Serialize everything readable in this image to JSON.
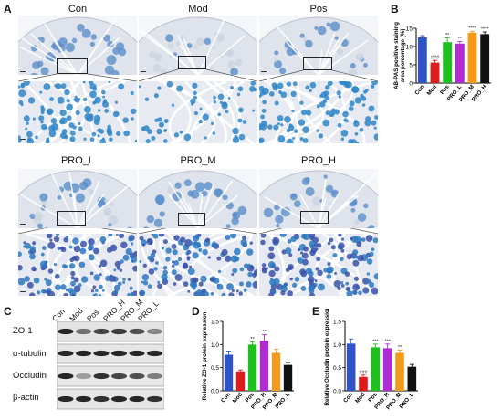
{
  "panels": {
    "A": {
      "label": "A",
      "groups": [
        "Con",
        "Mod",
        "Pos",
        "PRO_L",
        "PRO_M",
        "PRO_H"
      ]
    },
    "B": {
      "label": "B"
    },
    "C": {
      "label": "C",
      "lanes": [
        "Con",
        "Mod",
        "Pos",
        "PRO_H",
        "PRO_M",
        "PRO_L"
      ],
      "rows": [
        "ZO-1",
        "α-tubulin",
        "Occludin",
        "β-actin"
      ]
    },
    "D": {
      "label": "D"
    },
    "E": {
      "label": "E"
    }
  },
  "colors": {
    "Con": "#2f54c8",
    "Mod": "#e01b1b",
    "Pos": "#1fbf1f",
    "PRO_L": "#b02ad6",
    "PRO_M": "#f29a1a",
    "PRO_H": "#111111",
    "tissue_bg": "#e9edf2",
    "stain": "#2f7fc4"
  },
  "chart_data": [
    {
      "id": "B",
      "type": "bar",
      "categories": [
        "Con",
        "Mod",
        "Pos",
        "PRO_L",
        "PRO_M",
        "PRO_H"
      ],
      "values": [
        12.5,
        5.6,
        11.2,
        10.8,
        13.8,
        13.4
      ],
      "errors": [
        0.5,
        0.6,
        1.2,
        0.6,
        0.4,
        0.6
      ],
      "annotations": [
        "",
        "###",
        "**",
        "**",
        "****",
        "****"
      ],
      "colors": [
        "#2f54c8",
        "#e01b1b",
        "#1fbf1f",
        "#b02ad6",
        "#f29a1a",
        "#111111"
      ],
      "ylabel": "AB-PAS positive staining area percentage (%)",
      "ylim": [
        0,
        15
      ],
      "yticks": [
        0,
        5,
        10,
        15
      ]
    },
    {
      "id": "D",
      "type": "bar",
      "categories": [
        "Con",
        "Mod",
        "Pos",
        "PRO_H",
        "PRO_M",
        "PRO_L"
      ],
      "values": [
        0.78,
        0.42,
        1.0,
        1.08,
        0.82,
        0.56
      ],
      "errors": [
        0.08,
        0.03,
        0.06,
        0.13,
        0.08,
        0.05
      ],
      "annotations": [
        "",
        "",
        "**",
        "**",
        "",
        ""
      ],
      "colors": [
        "#2f54c8",
        "#e01b1b",
        "#1fbf1f",
        "#b02ad6",
        "#f29a1a",
        "#111111"
      ],
      "ylabel": "Relative ZO-1 protein expression",
      "ylim": [
        0,
        1.5
      ],
      "yticks": [
        0.0,
        0.5,
        1.0,
        1.5
      ]
    },
    {
      "id": "E",
      "type": "bar",
      "categories": [
        "Con",
        "Mod",
        "Pos",
        "PRO_H",
        "PRO_M",
        "PRO_L"
      ],
      "values": [
        1.02,
        0.3,
        0.94,
        0.92,
        0.82,
        0.52
      ],
      "errors": [
        0.1,
        0.04,
        0.07,
        0.09,
        0.06,
        0.05
      ],
      "annotations": [
        "",
        "###",
        "***",
        "***",
        "**",
        ""
      ],
      "colors": [
        "#2f54c8",
        "#e01b1b",
        "#1fbf1f",
        "#b02ad6",
        "#f29a1a",
        "#111111"
      ],
      "ylabel": "Relative Occludin protein expression",
      "ylim": [
        0,
        1.5
      ],
      "yticks": [
        0.0,
        0.5,
        1.0,
        1.5
      ]
    }
  ]
}
